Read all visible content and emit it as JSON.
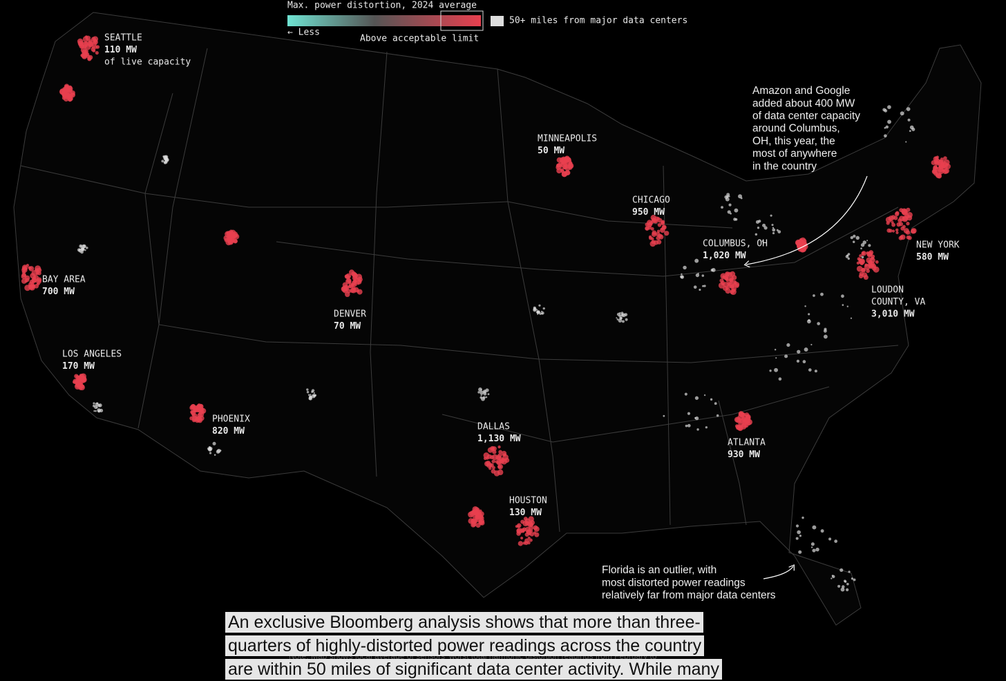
{
  "legend": {
    "title": "Max. power distortion, 2024 average",
    "low": "← Less",
    "high": "Above acceptable limit",
    "swatch": "50+ miles from major data centers"
  },
  "cities": [
    {
      "name": [
        "SEATTLE"
      ],
      "value": "110 MW",
      "note": "of live capacity"
    },
    {
      "name": [
        "BAY AREA"
      ],
      "value": "700 MW"
    },
    {
      "name": [
        "LOS ANGELES"
      ],
      "value": "170 MW"
    },
    {
      "name": [
        "PHOENIX"
      ],
      "value": "820 MW"
    },
    {
      "name": [
        "DENVER"
      ],
      "value": "70 MW"
    },
    {
      "name": [
        "MINNEAPOLIS"
      ],
      "value": "50 MW"
    },
    {
      "name": [
        "CHICAGO"
      ],
      "value": "950 MW"
    },
    {
      "name": [
        "COLUMBUS, OH"
      ],
      "value": "1,020 MW"
    },
    {
      "name": [
        "DALLAS"
      ],
      "value": "1,130 MW"
    },
    {
      "name": [
        "HOUSTON"
      ],
      "value": "130 MW"
    },
    {
      "name": [
        "ATLANTA"
      ],
      "value": "930 MW"
    },
    {
      "name": [
        "NEW YORK"
      ],
      "value": "580 MW"
    },
    {
      "name": [
        "LOUDON",
        "COUNTY, VA"
      ],
      "value": "3,010 MW"
    }
  ],
  "annotations": [
    {
      "lines": [
        "Amazon and Google",
        "added about 400 MW",
        "of data center capacity",
        "around Columbus,",
        "OH, this year, the",
        "most of anywhere",
        "in the country"
      ]
    },
    {
      "lines": [
        "Florida is an outlier, with",
        "most distorted power readings",
        "relatively far from major data centers"
      ]
    }
  ],
  "caption": {
    "lines": [
      "An exclusive Bloomberg analysis shows that more than three-",
      "quarters of highly-distorted power readings across the country",
      "are within 50 miles of significant data center activity. While many"
    ],
    "note": "Note: Map shows local average of sensors' worst total harmonic distortion readings from February to"
  }
}
